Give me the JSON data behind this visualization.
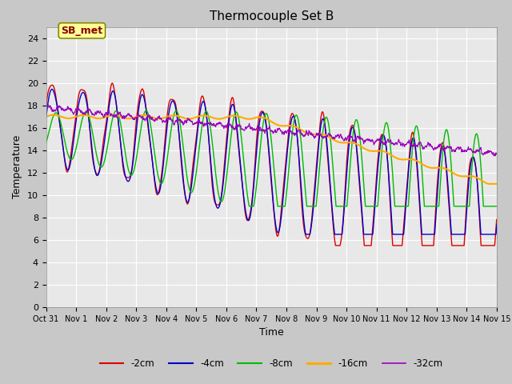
{
  "title": "Thermocouple Set B",
  "xlabel": "Time",
  "ylabel": "Temperature",
  "ylim": [
    0,
    25
  ],
  "yticks": [
    0,
    2,
    4,
    6,
    8,
    10,
    12,
    14,
    16,
    18,
    20,
    22,
    24
  ],
  "fig_bg_color": "#c8c8c8",
  "plot_bg_color": "#e8e8e8",
  "grid_color": "#ffffff",
  "annotation_text": "SB_met",
  "annotation_bg": "#ffff99",
  "annotation_border": "#c8a000",
  "legend_entries": [
    "-2cm",
    "-4cm",
    "-8cm",
    "-16cm",
    "-32cm"
  ],
  "line_colors": [
    "#dd0000",
    "#0000cc",
    "#00bb00",
    "#ffaa00",
    "#9900bb"
  ],
  "line_widths": [
    1.0,
    1.0,
    1.0,
    1.5,
    0.8
  ],
  "xtick_labels": [
    "Oct 31",
    "Nov 1",
    "Nov 2",
    "Nov 3",
    "Nov 4",
    "Nov 5",
    "Nov 6",
    "Nov 7",
    "Nov 8",
    "Nov 9",
    "Nov 10",
    "Nov 11",
    "Nov 12",
    "Nov 13",
    "Nov 14",
    "Nov 15"
  ]
}
